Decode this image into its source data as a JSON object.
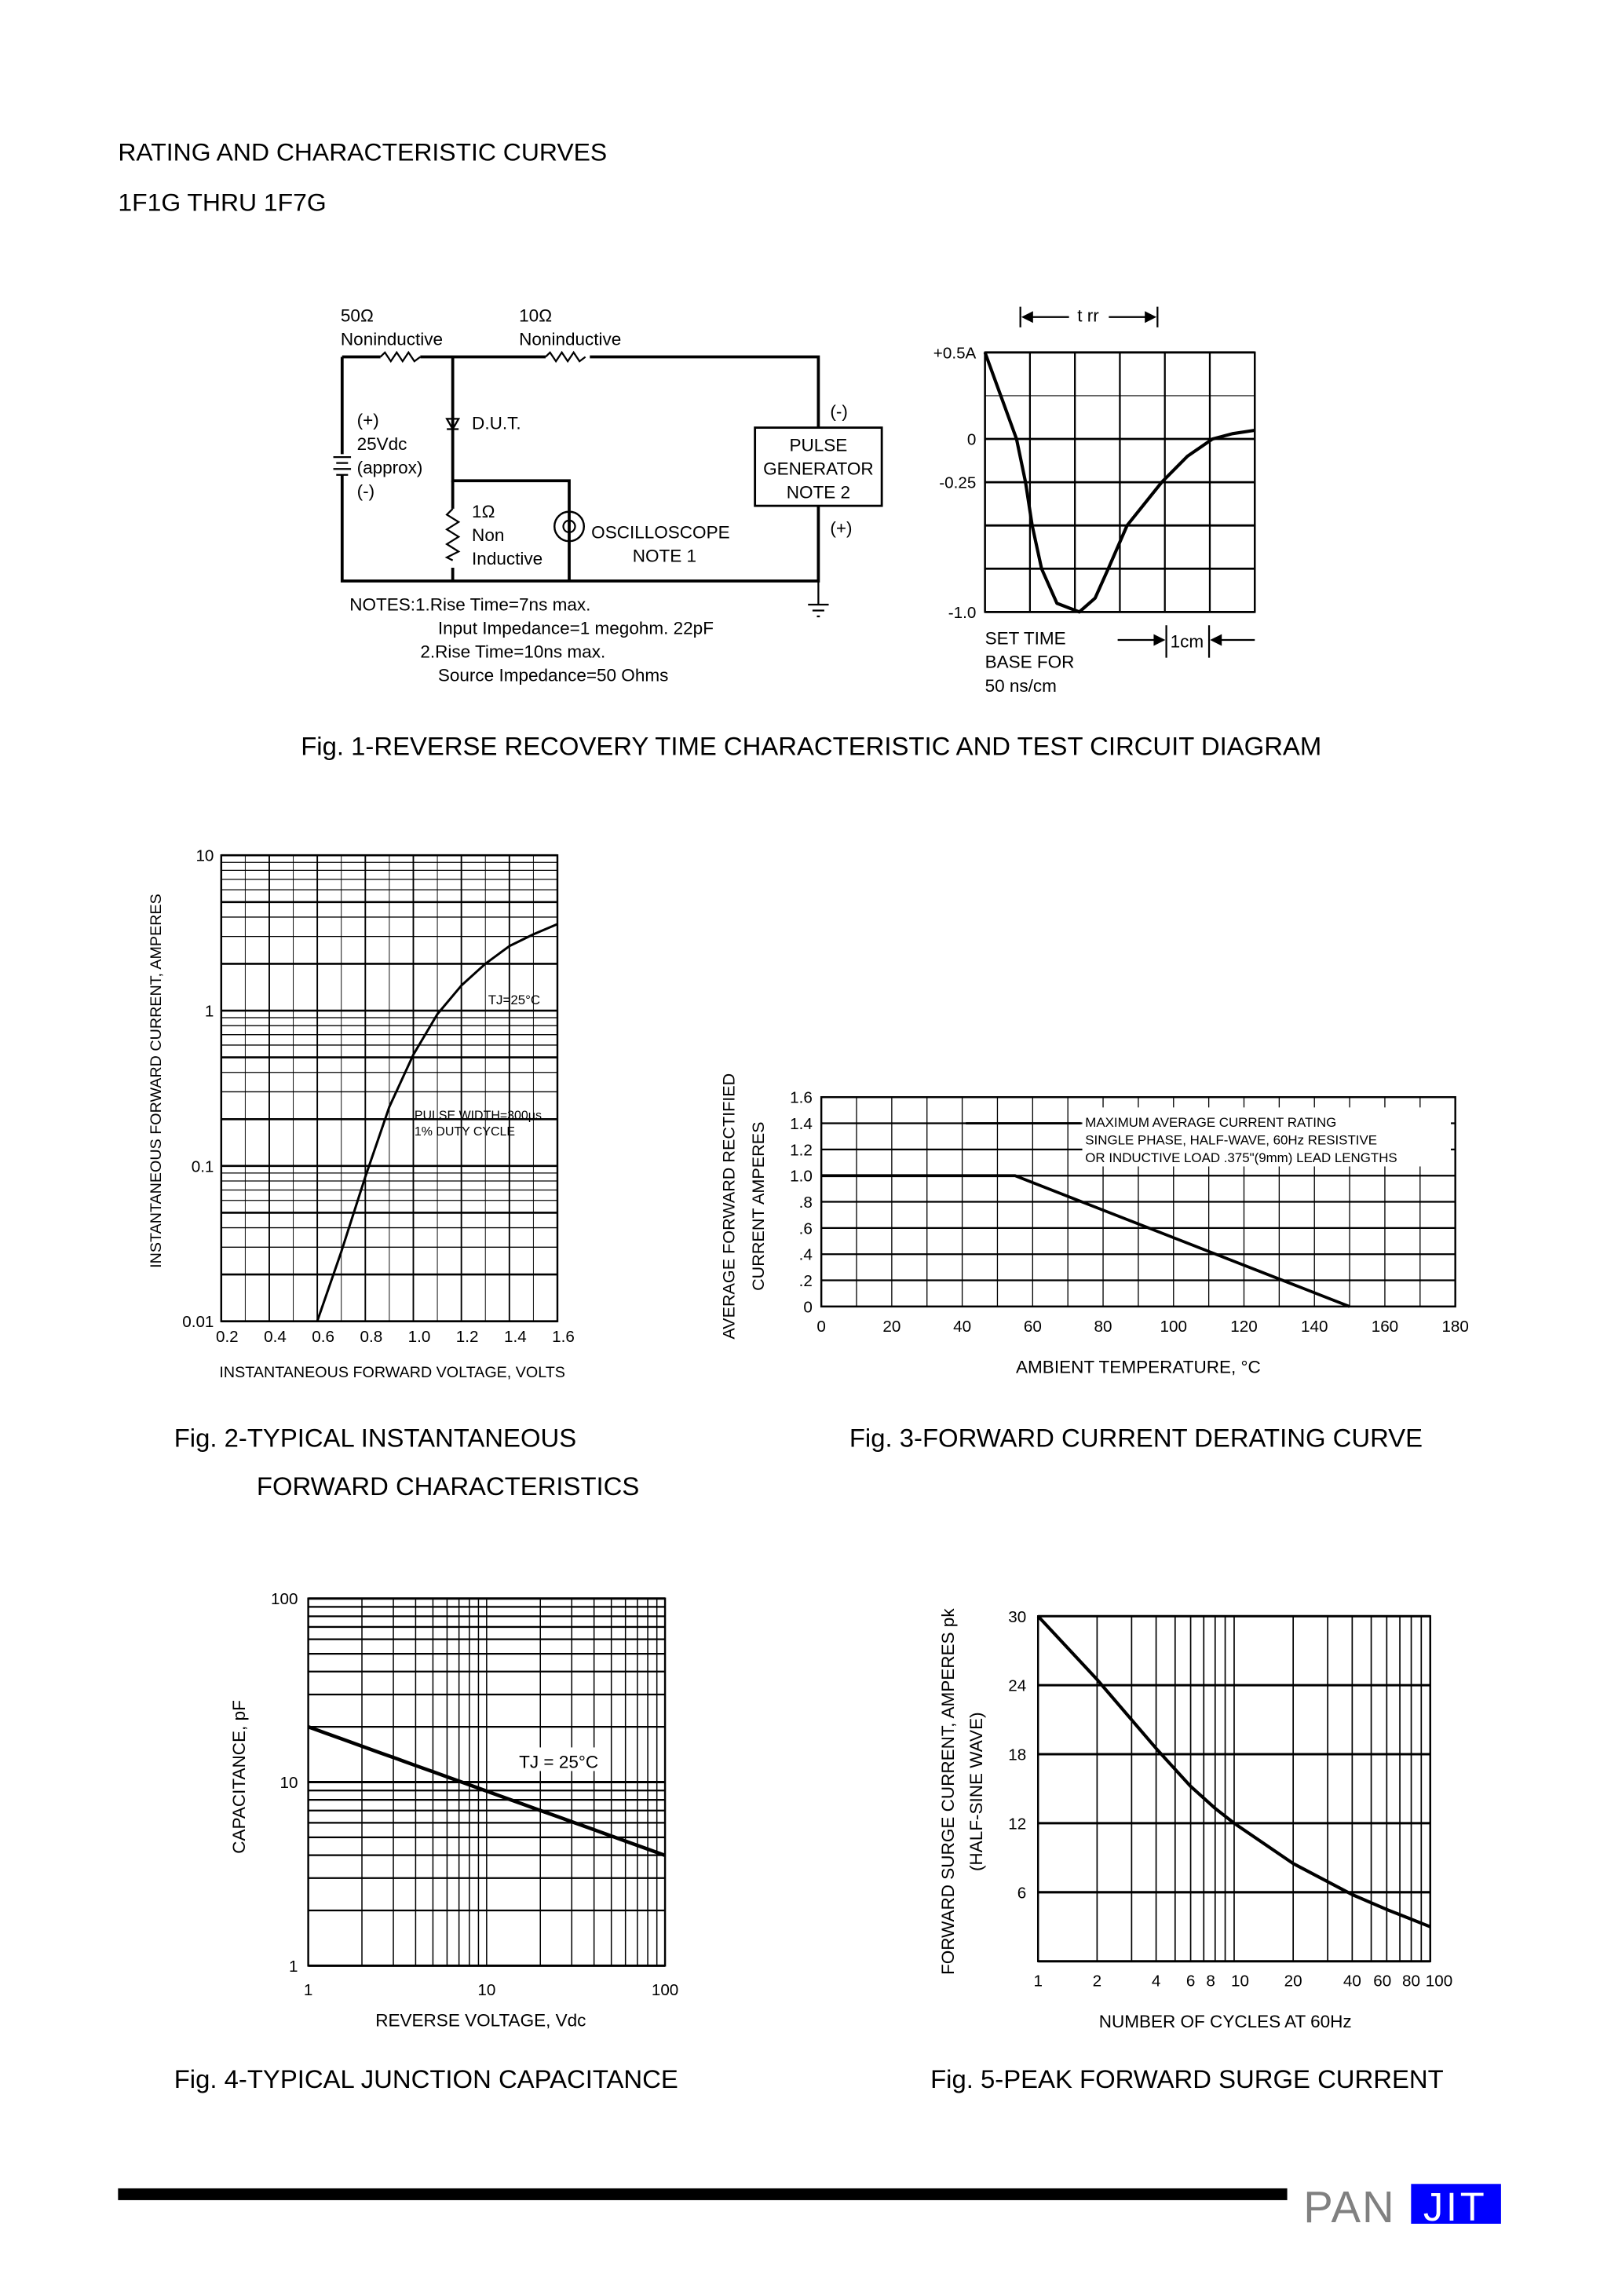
{
  "header": {
    "title": "RATING AND CHARACTERISTIC CURVES",
    "subtitle": "1F1G THRU 1F7G"
  },
  "fig1": {
    "caption": "Fig. 1-REVERSE RECOVERY TIME CHARACTERISTIC AND TEST CIRCUIT DIAGRAM",
    "circuit": {
      "r1_value": "50Ω",
      "r1_type": "Noninductive",
      "r2_value": "10Ω",
      "r2_type": "Noninductive",
      "supply_plus": "(+)",
      "supply_voltage": "25Vdc",
      "supply_approx": "(approx)",
      "supply_minus": "(-)",
      "dut": "D.U.T.",
      "r3_value": "1Ω",
      "r3_type_1": "Non",
      "r3_type_2": "Inductive",
      "scope": "OSCILLOSCOPE",
      "scope_note": "NOTE  1",
      "gen_line1": "PULSE",
      "gen_line2": "GENERATOR",
      "gen_line3": "NOTE  2",
      "gen_minus": "(-)",
      "gen_plus": "(+)",
      "notes": [
        "NOTES:1.Rise  Time=7ns  max.",
        "Input  Impedance=1  megohm.  22pF",
        "2.Rise  Time=10ns  max.",
        "Source  Impedance=50  Ohms"
      ]
    },
    "waveform": {
      "trr_label": "t rr",
      "set_time": [
        "SET  TIME",
        "BASE  FOR",
        "50 ns/cm"
      ],
      "scale_label": "1cm"
    }
  },
  "fig2": {
    "caption_line1": "Fig. 2-TYPICAL INSTANTANEOUS",
    "caption_line2": "FORWARD CHARACTERISTICS"
  },
  "fig3": {
    "caption": "Fig. 3-FORWARD CURRENT DERATING CURVE"
  },
  "fig4": {
    "caption": "Fig. 4-TYPICAL JUNCTION CAPACITANCE"
  },
  "fig5": {
    "caption": "Fig. 5-PEAK FORWARD SURGE CURRENT"
  },
  "footer": {
    "logo_left": "PAN",
    "logo_right": "JIT",
    "logo_gray": "#808080",
    "logo_blue": "#0000ff"
  },
  "chart_data": [
    {
      "id": "fig1-waveform",
      "type": "line",
      "ylim": [
        -1.0,
        0.5
      ],
      "ytick_labels": [
        "+0.5A",
        "0",
        "-0.25",
        "-1.0"
      ],
      "ytick_values": [
        0.5,
        0,
        -0.25,
        -1.0
      ],
      "xlim": [
        0,
        6
      ],
      "grid": true,
      "x": [
        0,
        0.35,
        0.7,
        0.9,
        1.05,
        1.26,
        1.6,
        2.1,
        2.45,
        2.74,
        3.16,
        3.93,
        4.5,
        5.06,
        5.5,
        6
      ],
      "y": [
        0.5,
        0.25,
        0,
        -0.25,
        -0.5,
        -0.75,
        -0.95,
        -1.0,
        -0.92,
        -0.75,
        -0.5,
        -0.25,
        -0.1,
        0,
        0.03,
        0.05
      ]
    },
    {
      "id": "fig2",
      "type": "line",
      "xlabel": "INSTANTANEOUS FORWARD VOLTAGE, VOLTS",
      "ylabel": "INSTANTANEOUS FORWARD CURRENT, AMPERES",
      "xlim": [
        0.2,
        1.6
      ],
      "ylim": [
        0.01,
        10
      ],
      "yscale": "log",
      "grid": true,
      "xtick_labels": [
        "0.2",
        "0.4",
        "0.6",
        "0.8",
        "1.0",
        "1.2",
        "1.4",
        "1.6"
      ],
      "ytick_labels": [
        "0.01",
        "0.1",
        "1",
        "10"
      ],
      "annotations": [
        "TJ=25°C",
        "PULSE WIDTH=300μs",
        "1% DUTY CYCLE"
      ],
      "x": [
        0.6,
        0.7,
        0.8,
        0.9,
        1.0,
        1.1,
        1.2,
        1.3,
        1.4,
        1.5,
        1.6
      ],
      "y": [
        0.01,
        0.028,
        0.085,
        0.24,
        0.52,
        0.95,
        1.45,
        2.0,
        2.6,
        3.1,
        3.6
      ]
    },
    {
      "id": "fig3",
      "type": "line",
      "xlabel": "AMBIENT  TEMPERATURE, °C",
      "ylabel": [
        "AVERAGE  FORWARD  RECTIFIED",
        "CURRENT  AMPERES"
      ],
      "xlim": [
        0,
        180
      ],
      "ylim": [
        0,
        1.6
      ],
      "grid": true,
      "xtick_labels": [
        "0",
        "20",
        "40",
        "60",
        "80",
        "100",
        "120",
        "140",
        "160",
        "180"
      ],
      "ytick_labels": [
        "0",
        ".2",
        ".4",
        ".6",
        ".8",
        "1.0",
        "1.2",
        "1.4",
        "1.6"
      ],
      "annotations": [
        "MAXIMUM  AVERAGE  CURRENT  RATING",
        "SINGLE  PHASE,  HALF-WAVE,  60Hz  RESISTIVE",
        "OR  INDUCTIVE  LOAD  .375\"(9mm)  LEAD  LENGTHS"
      ],
      "x": [
        0,
        55,
        150
      ],
      "y": [
        1.0,
        1.0,
        0
      ]
    },
    {
      "id": "fig4",
      "type": "line",
      "xlabel": "REVERSE  VOLTAGE,  Vdc",
      "ylabel": "CAPACITANCE,  pF",
      "xlim": [
        1,
        100
      ],
      "ylim": [
        1,
        100
      ],
      "xscale": "log",
      "yscale": "log",
      "grid": true,
      "xtick_labels": [
        "1",
        "10",
        "100"
      ],
      "ytick_labels": [
        "1",
        "10",
        "100"
      ],
      "annotations": [
        "TJ = 25°C"
      ],
      "x": [
        1,
        10,
        100
      ],
      "y": [
        20,
        9.2,
        4.0
      ]
    },
    {
      "id": "fig5",
      "type": "line",
      "xlabel": "NUMBER  OF  CYCLES  AT  60Hz",
      "ylabel": [
        "FORWARD  SURGE  CURRENT,  AMPERES  pk",
        "(HALF-SINE  WAVE)"
      ],
      "xlim": [
        1,
        100
      ],
      "ylim": [
        0,
        30
      ],
      "xscale": "log",
      "grid": true,
      "xtick_labels": [
        "1",
        "2",
        "4",
        "6",
        "8",
        "10",
        "20",
        "40",
        "60",
        "80",
        "100"
      ],
      "ytick_labels": [
        "6",
        "12",
        "18",
        "24",
        "30"
      ],
      "x": [
        1,
        2,
        4,
        6,
        8,
        10,
        20,
        40,
        60,
        100
      ],
      "y": [
        30,
        24.5,
        18.5,
        15.2,
        13.3,
        12,
        8.5,
        5.8,
        4.5,
        3.0
      ]
    }
  ]
}
